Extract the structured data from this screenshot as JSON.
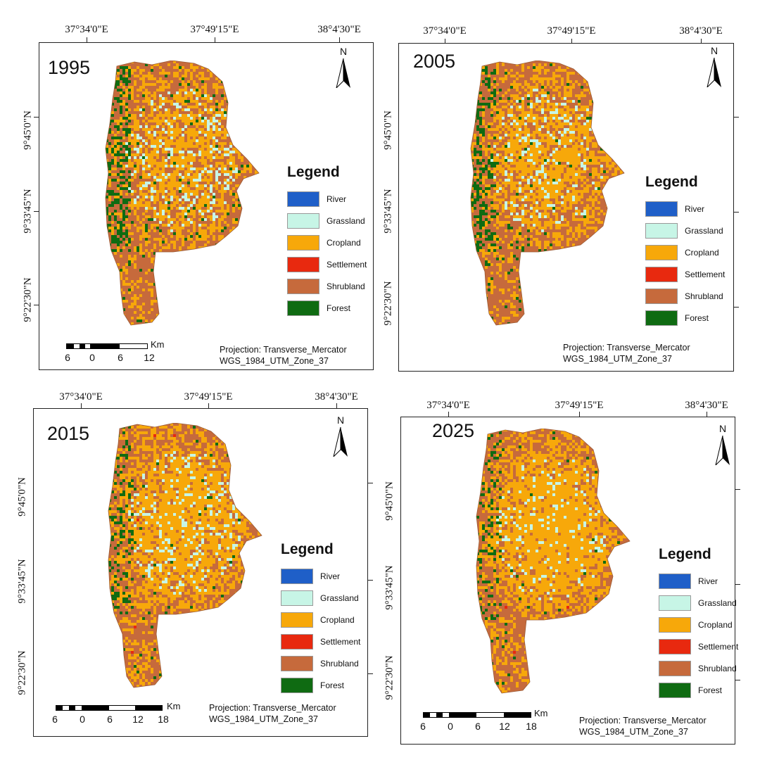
{
  "lon_labels": [
    "37°34'0\"E",
    "37°49'15\"E",
    "38°4'30\"E"
  ],
  "lat_labels": [
    "9°45'0\"N",
    "9°33'45\"N",
    "9°22'30\"N"
  ],
  "legend": {
    "title": "Legend",
    "classes": [
      {
        "label": "River",
        "color": "#1f5fc8"
      },
      {
        "label": "Grassland",
        "color": "#c7f5e6"
      },
      {
        "label": "Cropland",
        "color": "#f7a80a"
      },
      {
        "label": "Settlement",
        "color": "#e8290f"
      },
      {
        "label": "Shrubland",
        "color": "#c66a3c"
      },
      {
        "label": "Forest",
        "color": "#0f6b12"
      }
    ]
  },
  "projection_line1": "Projection: Transverse_Mercator",
  "projection_line2": "WGS_1984_UTM_Zone_37",
  "north_label": "N",
  "scale_unit": "Km",
  "panels": [
    {
      "year": "1995",
      "scale_labels": [
        "6",
        "0",
        "6",
        "12"
      ]
    },
    {
      "year": "2005",
      "scale_labels": []
    },
    {
      "year": "2015",
      "scale_labels": [
        "6",
        "0",
        "6",
        "12",
        "18"
      ]
    },
    {
      "year": "2025",
      "scale_labels": [
        "6",
        "0",
        "6",
        "12",
        "18"
      ]
    }
  ]
}
